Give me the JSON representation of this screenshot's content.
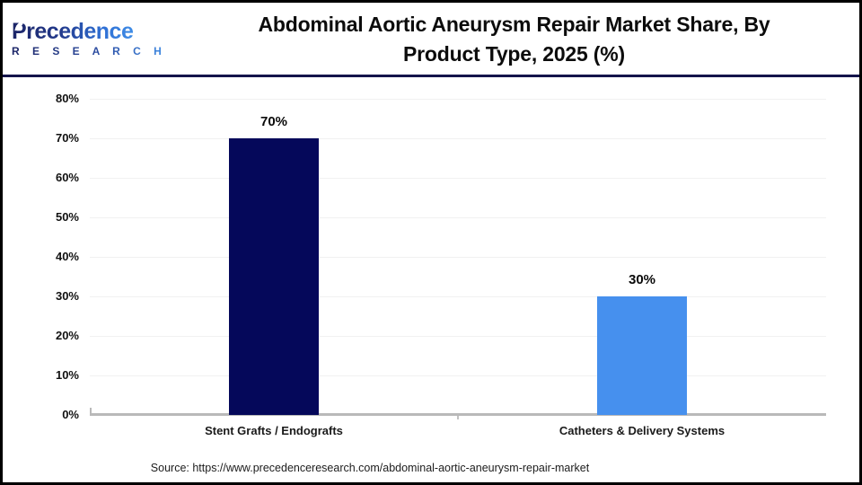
{
  "header": {
    "logo_primary": "Precedence",
    "logo_secondary": "R E S E A R C H",
    "title_lines": [
      "Abdominal Aortic Aneurysm Repair Market Share, By",
      "Product Type, 2025 (%)"
    ]
  },
  "chart_data": {
    "type": "bar",
    "title": "Abdominal Aortic Aneurysm Repair Market Share, By Product Type, 2025 (%)",
    "categories": [
      "Stent Grafts / Endografts",
      "Catheters & Delivery Systems"
    ],
    "values": [
      70,
      30
    ],
    "value_labels": [
      "70%",
      "30%"
    ],
    "bar_colors": [
      "#05085A",
      "#4690EE"
    ],
    "ylim": [
      0,
      80
    ],
    "yticks": [
      0,
      10,
      20,
      30,
      40,
      50,
      60,
      70,
      80
    ],
    "ytick_suffix": "%",
    "grid": true,
    "legend_position": "none",
    "xlabel": "",
    "ylabel": ""
  },
  "footer": {
    "source": "Source: https://www.precedenceresearch.com/abdominal-aortic-aneurysm-repair-market"
  },
  "colors": {
    "bar_primary": "#05085A",
    "bar_secondary": "#4690EE",
    "header_divider": "#14144B",
    "axis": "#B9B9B9",
    "gridline": "#F1F1F1",
    "logo_navy": "#1B2466",
    "logo_blue": "#3F8CE6"
  }
}
